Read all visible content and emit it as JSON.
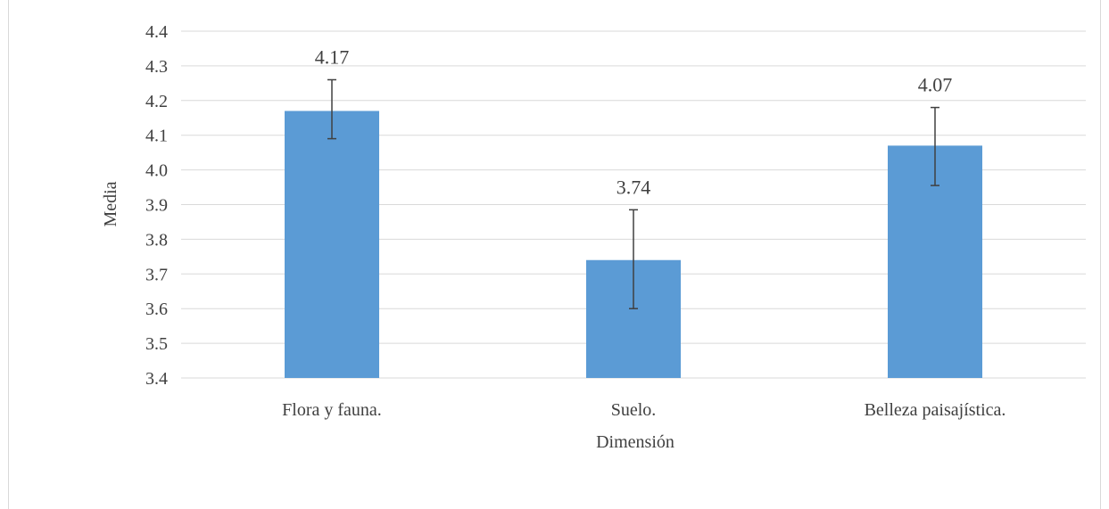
{
  "chart_data": {
    "type": "bar",
    "title": "",
    "xlabel": "Dimensión",
    "ylabel": "Media",
    "categories": [
      "Flora y fauna.",
      "Suelo.",
      "Belleza paisajística."
    ],
    "values": [
      4.17,
      3.74,
      4.07
    ],
    "data_labels": [
      "4.17",
      "3.74",
      "4.07"
    ],
    "error_bars": [
      {
        "low": 4.09,
        "high": 4.26
      },
      {
        "low": 3.6,
        "high": 3.885
      },
      {
        "low": 3.955,
        "high": 4.18
      }
    ],
    "ylim": [
      3.4,
      4.4
    ],
    "yticks": [
      "3.4",
      "3.5",
      "3.6",
      "3.7",
      "3.8",
      "3.9",
      "4.0",
      "4.1",
      "4.2",
      "4.3",
      "4.4"
    ],
    "grid": true,
    "legend": "none",
    "colors": {
      "bar": "#5b9bd5",
      "grid": "#d9d9d9",
      "error_bar": "#404040",
      "text": "#404040"
    }
  }
}
